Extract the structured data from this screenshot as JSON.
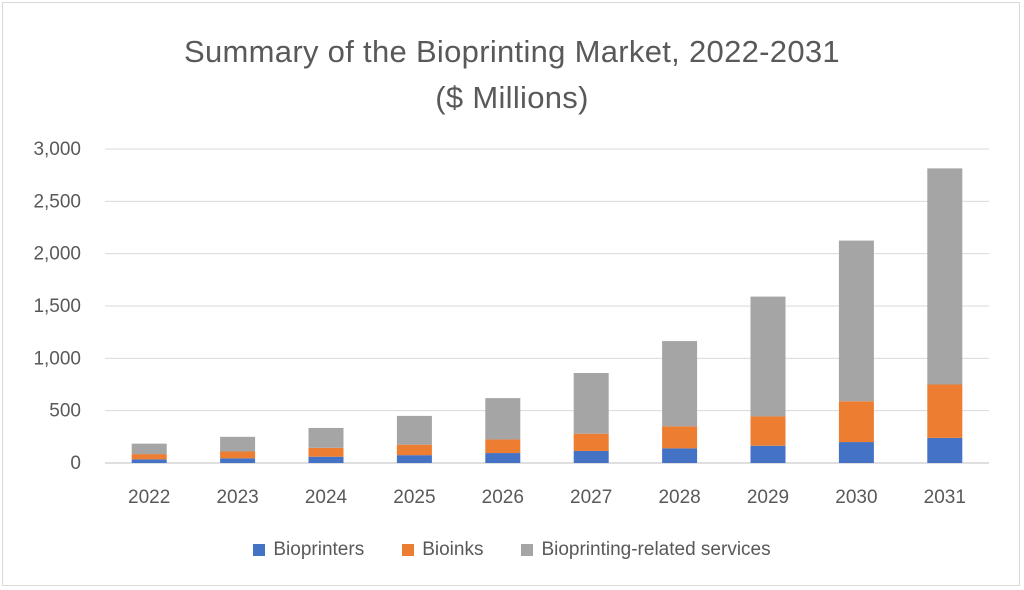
{
  "chart_data": {
    "type": "bar",
    "stacked": true,
    "title": "Summary of the Bioprinting Market, 2022-2031",
    "subtitle": "($ Millions)",
    "categories": [
      "2022",
      "2023",
      "2024",
      "2025",
      "2026",
      "2027",
      "2028",
      "2029",
      "2030",
      "2031"
    ],
    "series": [
      {
        "name": "Bioprinters",
        "color": "#4472c4",
        "values": [
          35,
          45,
          60,
          75,
          95,
          115,
          140,
          165,
          200,
          240
        ]
      },
      {
        "name": "Bioinks",
        "color": "#ed7d31",
        "values": [
          50,
          65,
          85,
          100,
          130,
          165,
          210,
          280,
          390,
          510
        ]
      },
      {
        "name": "Bioprinting-related services",
        "color": "#a5a5a5",
        "values": [
          100,
          140,
          190,
          275,
          395,
          580,
          815,
          1145,
          1535,
          2065
        ]
      }
    ],
    "yticks": [
      "0",
      "500",
      "1,000",
      "1,500",
      "2,000",
      "2,500",
      "3,000"
    ],
    "ylim": [
      0,
      3000
    ],
    "grid": true,
    "legend_position": "bottom"
  }
}
